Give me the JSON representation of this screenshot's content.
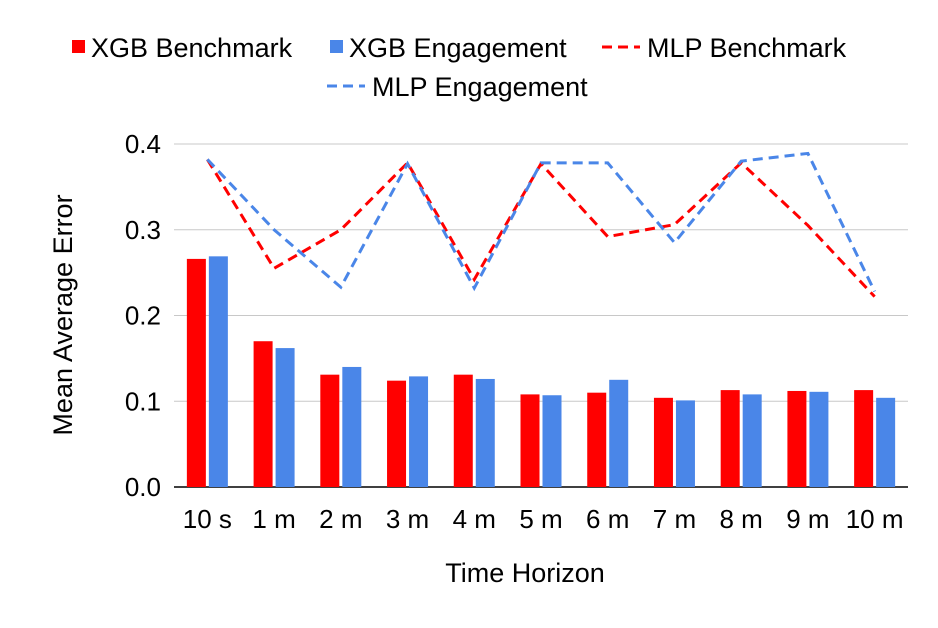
{
  "chart_data": {
    "type": "bar+line",
    "title": "",
    "xlabel": "Time Horizon",
    "ylabel": "Mean Average Error",
    "ylim": [
      0,
      0.4
    ],
    "yticks": [
      0.0,
      0.1,
      0.2,
      0.3,
      0.4
    ],
    "ytick_labels": [
      "0.0",
      "0.1",
      "0.2",
      "0.3",
      "0.4"
    ],
    "grid": true,
    "legend_position": "top",
    "categories": [
      "10 s",
      "1 m",
      "2 m",
      "3 m",
      "4 m",
      "5 m",
      "6 m",
      "7 m",
      "8 m",
      "9 m",
      "10 m"
    ],
    "series": [
      {
        "name": "XGB Benchmark",
        "kind": "bar",
        "color": "#ff0000",
        "values": [
          0.266,
          0.17,
          0.131,
          0.124,
          0.131,
          0.108,
          0.11,
          0.104,
          0.113,
          0.112,
          0.113
        ]
      },
      {
        "name": "XGB Engagement",
        "kind": "bar",
        "color": "#4a86e8",
        "values": [
          0.269,
          0.162,
          0.14,
          0.129,
          0.126,
          0.107,
          0.125,
          0.101,
          0.108,
          0.111,
          0.104
        ]
      },
      {
        "name": "MLP Benchmark",
        "kind": "line-dashed",
        "color": "#ff0000",
        "values": [
          0.382,
          0.255,
          0.3,
          0.378,
          0.242,
          0.377,
          0.292,
          0.306,
          0.378,
          0.305,
          0.222
        ]
      },
      {
        "name": "MLP Engagement",
        "kind": "line-dashed",
        "color": "#4a86e8",
        "values": [
          0.382,
          0.3,
          0.233,
          0.377,
          0.232,
          0.378,
          0.378,
          0.285,
          0.38,
          0.389,
          0.228
        ]
      }
    ]
  }
}
